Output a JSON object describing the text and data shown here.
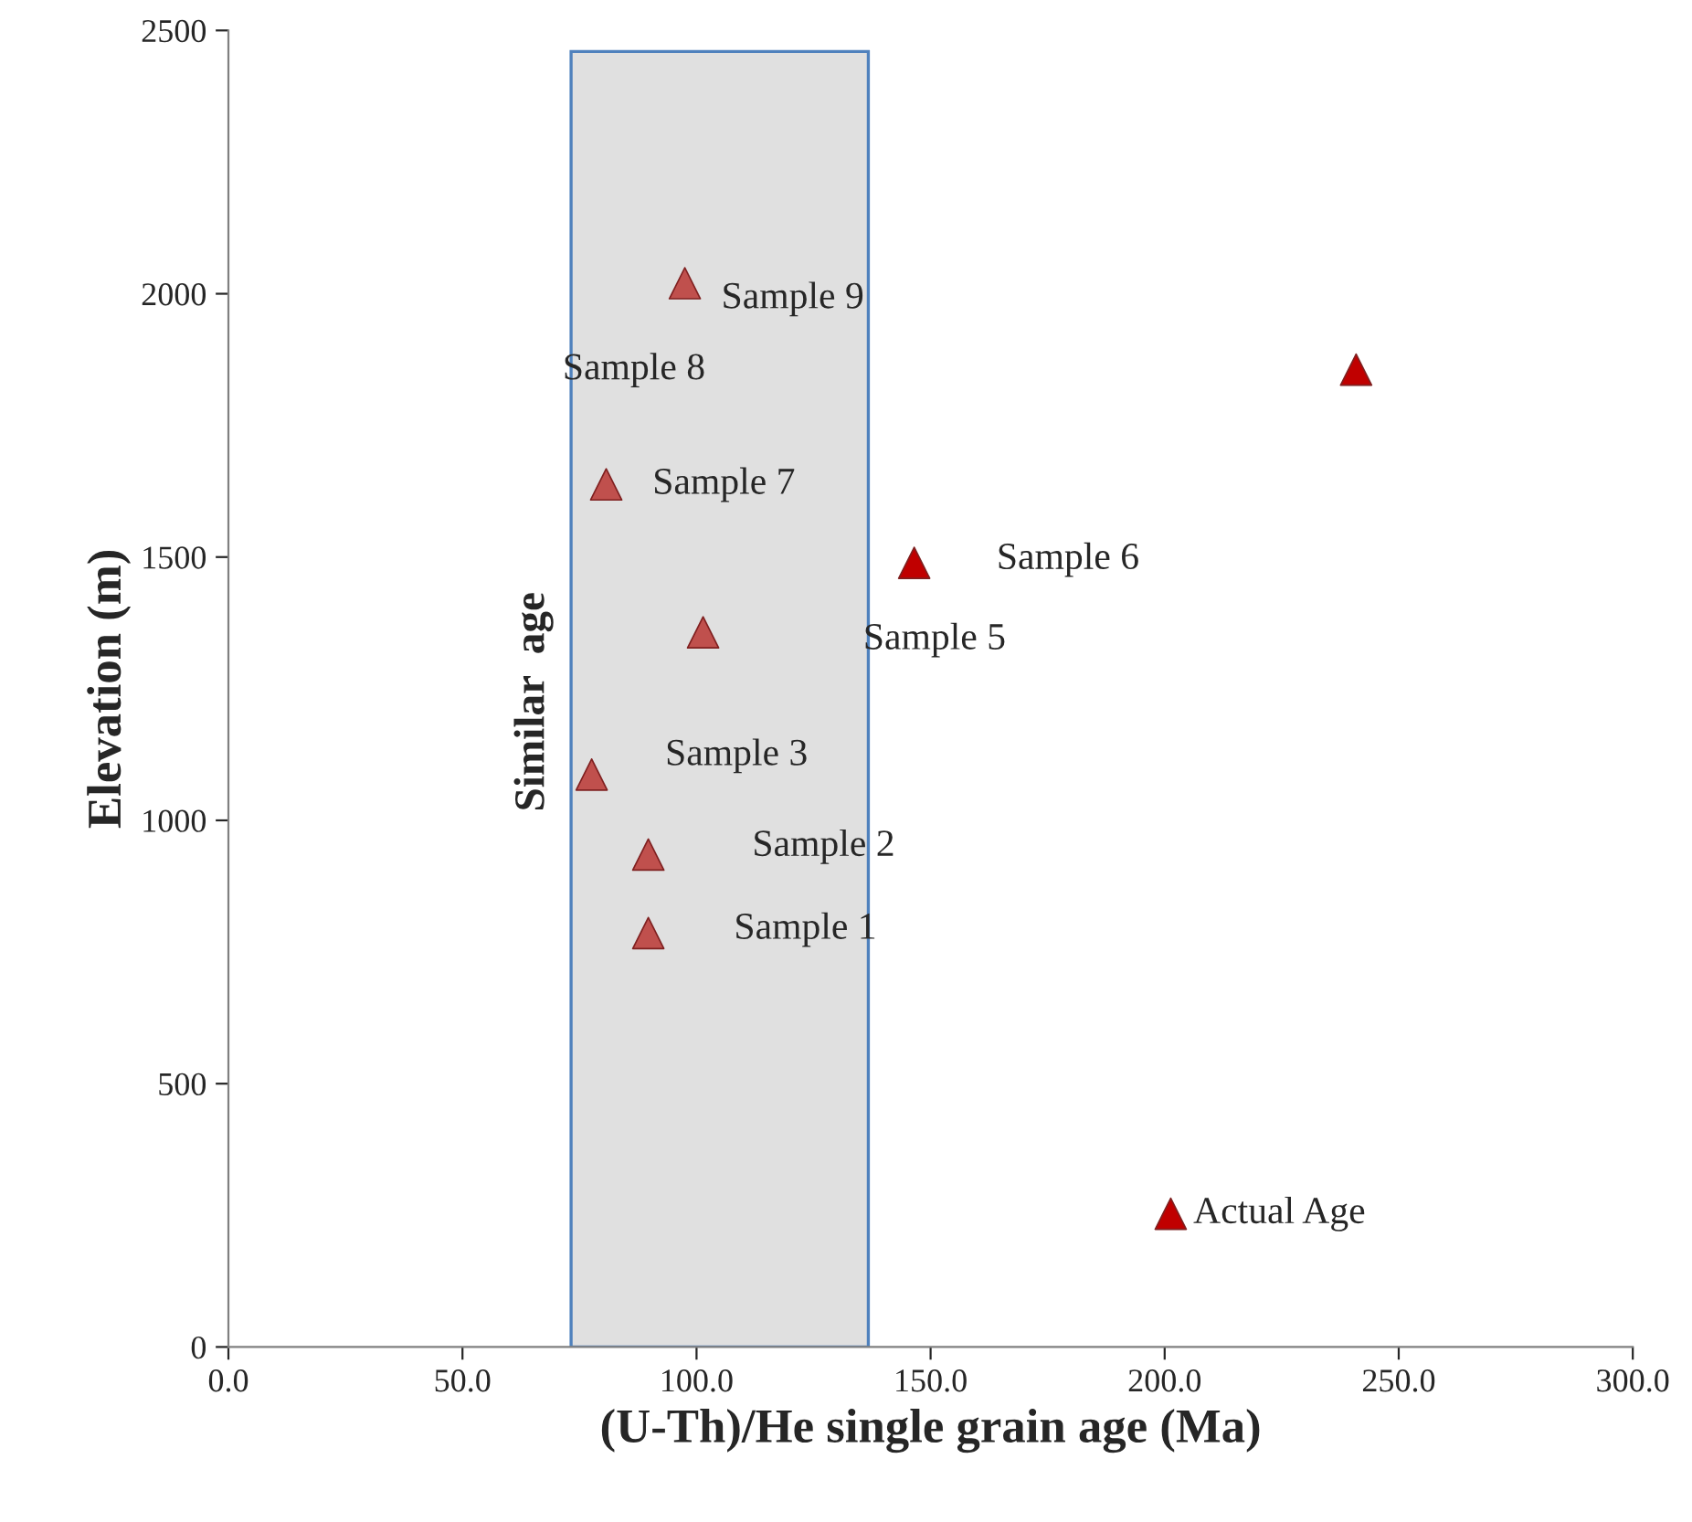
{
  "chart_data": {
    "type": "scatter",
    "xlabel": "(U-Th)/He single grain age (Ma)",
    "ylabel": "Elevation (m)",
    "x": [
      97.5,
      240.9,
      80.7,
      146.5,
      101.4,
      77.6,
      89.7,
      89.7,
      201.3
    ],
    "values": [
      2020,
      1856,
      1638,
      1489,
      1357,
      1087,
      935,
      786,
      253
    ],
    "colors": [
      "#c0504d",
      "#c00000",
      "#c0504d",
      "#c00000",
      "#c0504d",
      "#c0504d",
      "#c0504d",
      "#c0504d",
      "#c00000"
    ],
    "marker": "triangle",
    "xlim": [
      0,
      300
    ],
    "ylim": [
      0,
      2500
    ],
    "xticks": [
      {
        "value": 0,
        "label": "0.0"
      },
      {
        "value": 50,
        "label": "50.0"
      },
      {
        "value": 100,
        "label": "100.0"
      },
      {
        "value": 150,
        "label": "150.0"
      },
      {
        "value": 200,
        "label": "200.0"
      },
      {
        "value": 250,
        "label": "250.0"
      },
      {
        "value": 300,
        "label": "300.0"
      }
    ],
    "yticks": [
      0,
      500,
      1000,
      1500,
      2000,
      2500
    ],
    "grid": false,
    "bands": [
      {
        "axis": "x",
        "from": 73.2,
        "to": 136.7,
        "label": "Similar  age",
        "color": "#e0e0e0"
      }
    ],
    "annotations": [
      "Sample 9",
      "Sample 8",
      "Sample 7",
      "Sample 6",
      "Sample 5",
      "Sample 3",
      "Sample 2",
      "Sample 1",
      "Actual Age"
    ]
  }
}
